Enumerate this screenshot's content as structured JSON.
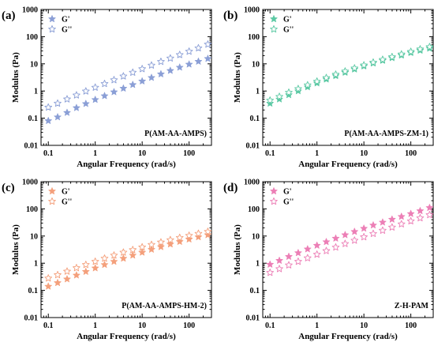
{
  "chart_data": [
    {
      "type": "scatter",
      "panel_label": "(a)",
      "annotation": "P(AM-AA-AMPS)",
      "xlabel": "Angular Frequency (rad/s)",
      "ylabel": "Modulus (Pa)",
      "x_scale": "log",
      "y_scale": "log",
      "xlim": [
        0.07,
        300
      ],
      "ylim": [
        0.01,
        1000
      ],
      "x_ticks": [
        "0.1",
        "1",
        "10",
        "100"
      ],
      "y_ticks": [
        "0.01",
        "0.1",
        "1",
        "10",
        "100",
        "1000"
      ],
      "legend_position": "top-left",
      "x": [
        0.1,
        0.158,
        0.251,
        0.398,
        0.631,
        1.0,
        1.58,
        2.51,
        3.98,
        6.31,
        10,
        15.8,
        25.1,
        39.8,
        63.1,
        100,
        158,
        251
      ],
      "series": [
        {
          "name": "G'",
          "color": "#8b9fd6",
          "filled": true,
          "values": [
            0.08,
            0.11,
            0.16,
            0.24,
            0.34,
            0.48,
            0.66,
            0.92,
            1.25,
            1.7,
            2.3,
            3.1,
            4.2,
            5.6,
            7.4,
            9.6,
            12.2,
            15.5
          ]
        },
        {
          "name": "G''",
          "color": "#8b9fd6",
          "filled": false,
          "values": [
            0.25,
            0.35,
            0.5,
            0.7,
            0.98,
            1.35,
            1.85,
            2.55,
            3.5,
            4.8,
            6.5,
            8.8,
            12,
            16,
            21.5,
            28.5,
            38,
            52
          ]
        }
      ]
    },
    {
      "type": "scatter",
      "panel_label": "(b)",
      "annotation": "P(AM-AA-AMPS-ZM-1)",
      "xlabel": "Angular Frequency (rad/s)",
      "ylabel": "Modulus (Pa)",
      "x_scale": "log",
      "y_scale": "log",
      "xlim": [
        0.07,
        300
      ],
      "ylim": [
        0.01,
        1000
      ],
      "x_ticks": [
        "0.1",
        "1",
        "10",
        "100"
      ],
      "y_ticks": [
        "0.01",
        "0.1",
        "1",
        "10",
        "100",
        "1000"
      ],
      "legend_position": "top-left",
      "x": [
        0.1,
        0.158,
        0.251,
        0.398,
        0.631,
        1.0,
        1.58,
        2.51,
        3.98,
        6.31,
        10,
        15.8,
        25.1,
        39.8,
        63.1,
        100,
        158,
        251
      ],
      "series": [
        {
          "name": "G'",
          "color": "#5cc9a4",
          "filled": true,
          "values": [
            0.35,
            0.5,
            0.72,
            1.0,
            1.4,
            1.95,
            2.7,
            3.6,
            4.8,
            6.3,
            8.2,
            10.5,
            13.2,
            16.5,
            20.5,
            25.5,
            31,
            37
          ]
        },
        {
          "name": "G''",
          "color": "#5cc9a4",
          "filled": false,
          "values": [
            0.45,
            0.62,
            0.88,
            1.2,
            1.65,
            2.25,
            3.05,
            4.05,
            5.3,
            6.9,
            8.9,
            11.3,
            14.3,
            18,
            22.5,
            28,
            34.5,
            42
          ]
        }
      ]
    },
    {
      "type": "scatter",
      "panel_label": "(c)",
      "annotation": "P(AM-AA-AMPS-HM-2)",
      "xlabel": "Angular Frequency (rad/s)",
      "ylabel": "Modulus (Pa)",
      "x_scale": "log",
      "y_scale": "log",
      "xlim": [
        0.07,
        300
      ],
      "ylim": [
        0.01,
        1000
      ],
      "x_ticks": [
        "0.1",
        "1",
        "10",
        "100"
      ],
      "y_ticks": [
        "0.01",
        "0.1",
        "1",
        "10",
        "100",
        "1000"
      ],
      "legend_position": "top-left",
      "x": [
        0.1,
        0.158,
        0.251,
        0.398,
        0.631,
        1.0,
        1.58,
        2.51,
        3.98,
        6.31,
        10,
        15.8,
        25.1,
        39.8,
        63.1,
        100,
        158,
        251
      ],
      "series": [
        {
          "name": "G'",
          "color": "#f4a07c",
          "filled": true,
          "values": [
            0.14,
            0.19,
            0.26,
            0.36,
            0.49,
            0.66,
            0.88,
            1.15,
            1.5,
            1.95,
            2.5,
            3.2,
            4.0,
            5.0,
            6.2,
            7.6,
            9.2,
            11
          ]
        },
        {
          "name": "G''",
          "color": "#f4a07c",
          "filled": false,
          "values": [
            0.28,
            0.37,
            0.5,
            0.67,
            0.88,
            1.15,
            1.5,
            1.95,
            2.5,
            3.1,
            3.9,
            4.8,
            5.9,
            7.2,
            8.7,
            10.4,
            12.3,
            14.5
          ]
        }
      ]
    },
    {
      "type": "scatter",
      "panel_label": "(d)",
      "annotation": "Z-H-PAM",
      "xlabel": "Angular Frequency (rad/s)",
      "ylabel": "Modulus (Pa)",
      "x_scale": "log",
      "y_scale": "log",
      "xlim": [
        0.07,
        300
      ],
      "ylim": [
        0.01,
        1000
      ],
      "x_ticks": [
        "0.1",
        "1",
        "10",
        "100"
      ],
      "y_ticks": [
        "0.01",
        "0.1",
        "1",
        "10",
        "100",
        "1000"
      ],
      "legend_position": "top-left",
      "x": [
        0.1,
        0.158,
        0.251,
        0.398,
        0.631,
        1.0,
        1.58,
        2.51,
        3.98,
        6.31,
        10,
        15.8,
        25.1,
        39.8,
        63.1,
        100,
        158,
        251
      ],
      "series": [
        {
          "name": "G'",
          "color": "#ec7fb6",
          "filled": true,
          "values": [
            0.9,
            1.25,
            1.75,
            2.4,
            3.3,
            4.5,
            6.1,
            8.2,
            11,
            14.5,
            19,
            25,
            32,
            41,
            52,
            66,
            84,
            110
          ]
        },
        {
          "name": "G''",
          "color": "#ec7fb6",
          "filled": false,
          "values": [
            0.45,
            0.62,
            0.85,
            1.15,
            1.55,
            2.1,
            2.85,
            3.85,
            5.2,
            6.9,
            9.2,
            12.2,
            16,
            21,
            27.5,
            35.5,
            46,
            60
          ]
        }
      ]
    }
  ]
}
